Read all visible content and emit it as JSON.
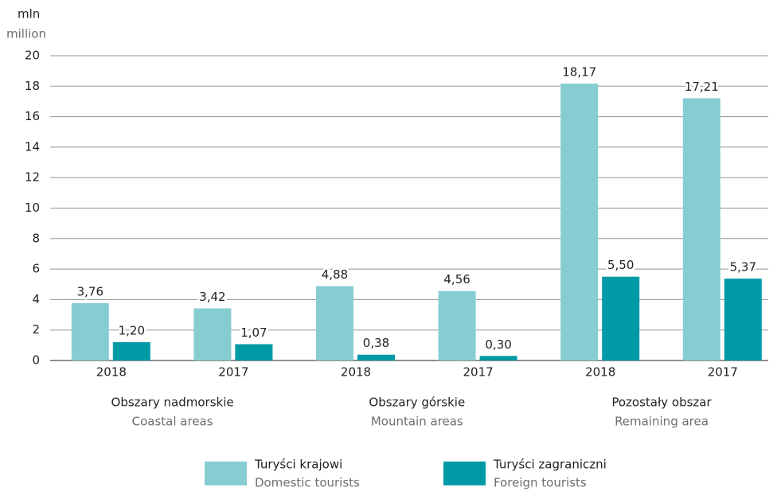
{
  "chart_data": {
    "type": "bar",
    "y_label": "mln",
    "y_label_en": "million",
    "categories": [
      "2018",
      "2017",
      "2018",
      "2017",
      "2018",
      "2017"
    ],
    "groups": [
      {
        "label": "Obszary nadmorskie",
        "label_en": "Coastal areas"
      },
      {
        "label": "Obszary górskie",
        "label_en": "Mountain areas"
      },
      {
        "label": "Pozostały obszar",
        "label_en": "Remaining area"
      }
    ],
    "series": [
      {
        "name": "Turyści krajowi",
        "name_en": "Domestic tourists",
        "color": "#86cdd2",
        "values": [
          3.76,
          3.42,
          4.88,
          4.56,
          18.17,
          17.21
        ],
        "value_labels": [
          "3,76",
          "3,42",
          "4,88",
          "4,56",
          "18,17",
          "17,21"
        ]
      },
      {
        "name": "Turyści zagraniczni",
        "name_en": "Foreign tourists",
        "color": "#009aa6",
        "values": [
          1.2,
          1.07,
          0.38,
          0.3,
          5.5,
          5.37
        ],
        "value_labels": [
          "1,20",
          "1,07",
          "0,38",
          "0,30",
          "5,50",
          "5,37"
        ]
      }
    ],
    "ylim": [
      0,
      20
    ],
    "yticks": [
      0,
      2,
      4,
      6,
      8,
      10,
      12,
      14,
      16,
      18,
      20
    ],
    "grid": true
  }
}
